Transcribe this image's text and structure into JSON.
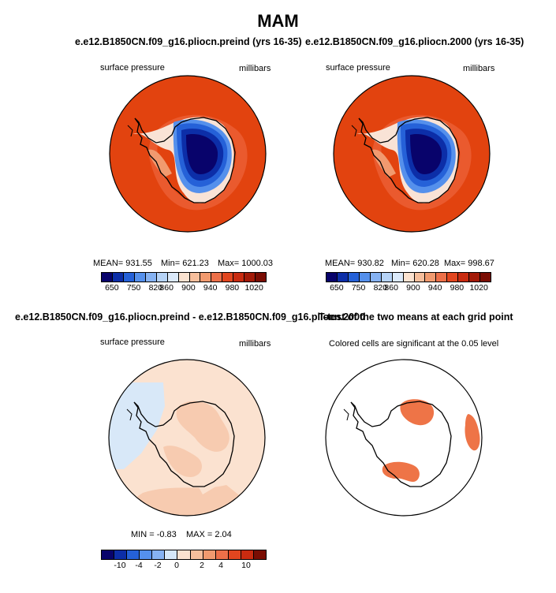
{
  "title": "MAM",
  "panels": [
    {
      "title": "e.e12.B1850CN.f09_g16.pliocn.preind (yrs 16-35)",
      "left_label": "surface pressure",
      "right_label": "millibars",
      "stats": {
        "mean": "MEAN= 931.55",
        "min": "Min= 621.23",
        "max": "Max= 1000.03"
      }
    },
    {
      "title": "e.e12.B1850CN.f09_g16.pliocn.2000 (yrs 16-35)",
      "left_label": "surface pressure",
      "right_label": "millibars",
      "stats": {
        "mean": "MEAN= 930.82",
        "min": "Min= 620.28",
        "max": "Max= 998.67"
      }
    },
    {
      "title": "e.e12.B1850CN.f09_g16.pliocn.preind - e.e12.B1850CN.f09_g16.pliocn.2000",
      "left_label": "surface pressure",
      "right_label": "millibars",
      "stats": {
        "min": "MIN = -0.83",
        "max": "MAX = 2.04"
      }
    },
    {
      "title": "T-test of the two means at each grid point",
      "subtitle": "Colored cells are significant at the 0.05 level"
    }
  ],
  "colorbar_abs": {
    "ticks": [
      "650",
      "750",
      "820",
      "860",
      "900",
      "940",
      "980",
      "1020"
    ],
    "colors": [
      "#08036b",
      "#0c2ea8",
      "#2561d8",
      "#5590ec",
      "#86b2f2",
      "#b6d3f7",
      "#dbe9fa",
      "#fbe2d0",
      "#f6be9c",
      "#f19a6f",
      "#ed7049",
      "#e2461f",
      "#c92b10",
      "#a31a08",
      "#7a0d03"
    ]
  },
  "colorbar_diff": {
    "ticks": [
      "-10",
      "-4",
      "-2",
      "0",
      "2",
      "4",
      "10"
    ],
    "colors": [
      "#08036b",
      "#0c2ea8",
      "#2561d8",
      "#5590ec",
      "#86b2f2",
      "#d6e7f8",
      "#fbe2d0",
      "#f6be9c",
      "#f19a6f",
      "#ed7049",
      "#e2461f",
      "#c92b10",
      "#7a0d03"
    ]
  },
  "map_colors": {
    "ocean_high": "#e0400e",
    "ocean_ring": "#ea5a2e",
    "low_core": "#0a0875",
    "diff_positive": "#fbe0cf",
    "diff_positive2": "#f7cbb0",
    "diff_negative": "#d8e8f8",
    "signif": "#ee7447"
  }
}
